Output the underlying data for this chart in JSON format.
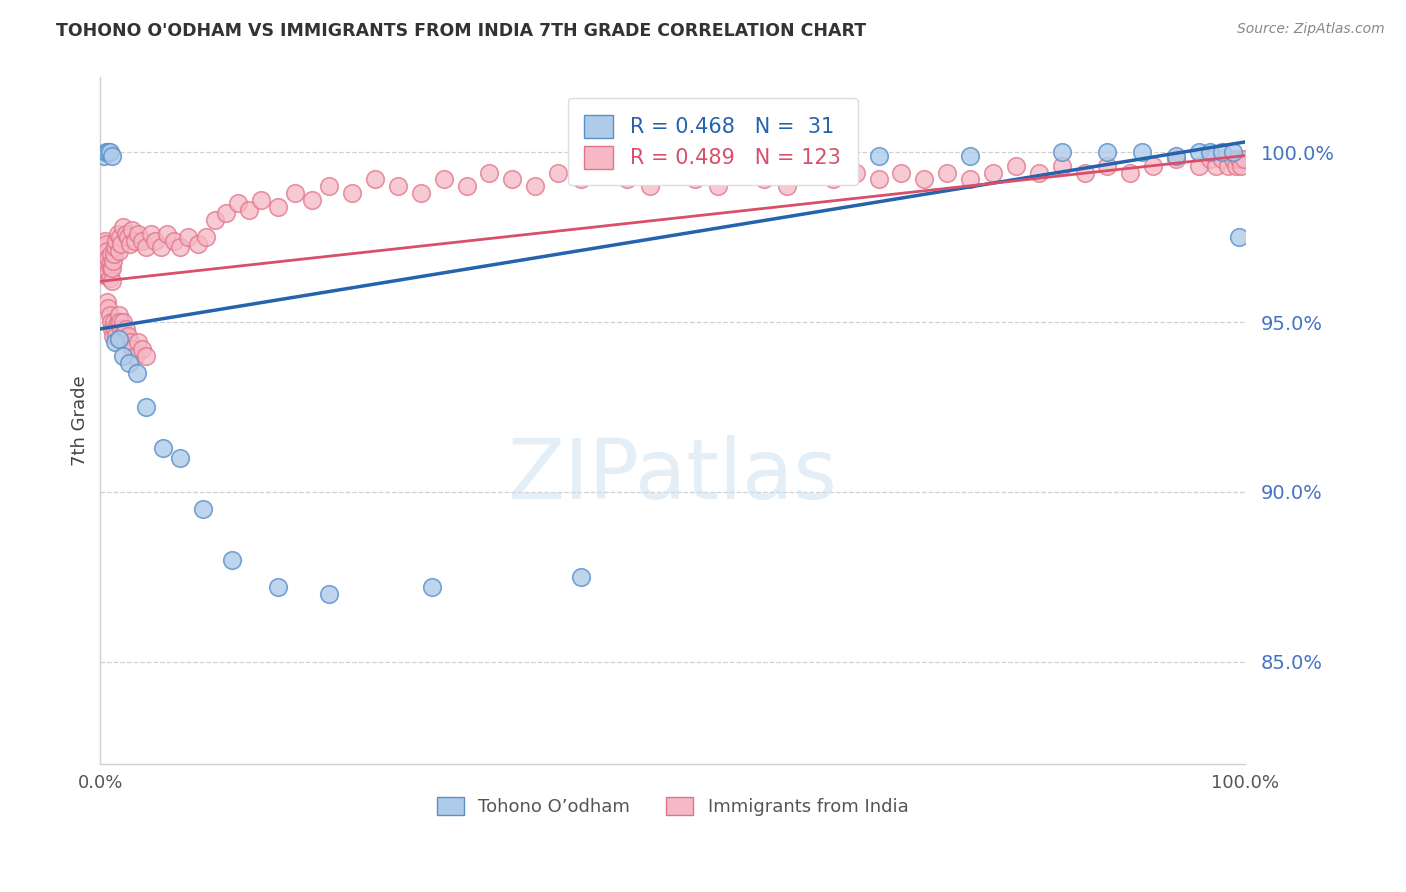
{
  "title": "TOHONO O'ODHAM VS IMMIGRANTS FROM INDIA 7TH GRADE CORRELATION CHART",
  "source": "Source: ZipAtlas.com",
  "ylabel": "7th Grade",
  "watermark": "ZIPatlas",
  "blue_legend": "Tohono O’odham",
  "pink_legend": "Immigrants from India",
  "blue_R": 0.468,
  "blue_N": 31,
  "pink_R": 0.489,
  "pink_N": 123,
  "ytick_values": [
    0.85,
    0.9,
    0.95,
    1.0
  ],
  "ytick_labels": [
    "85.0%",
    "90.0%",
    "95.0%",
    "100.0%"
  ],
  "xlim": [
    0.0,
    1.0
  ],
  "ylim": [
    0.82,
    1.022
  ],
  "blue_color": "#aecbea",
  "pink_color": "#f5b8c4",
  "blue_edge_color": "#5b8fc9",
  "pink_edge_color": "#e0758a",
  "blue_line_color": "#2563ae",
  "pink_line_color": "#d94f6b",
  "background_color": "#ffffff",
  "grid_color": "#d0d0d0",
  "title_color": "#333333",
  "source_color": "#888888",
  "ytick_color": "#4472c4",
  "blue_line_x0": 0.0,
  "blue_line_y0": 0.948,
  "blue_line_x1": 1.0,
  "blue_line_y1": 1.003,
  "pink_line_x0": 0.0,
  "pink_line_y0": 0.962,
  "pink_line_x1": 1.0,
  "pink_line_y1": 0.999,
  "blue_x": [
    0.003,
    0.005,
    0.007,
    0.008,
    0.01,
    0.013,
    0.016,
    0.02,
    0.025,
    0.032,
    0.04,
    0.055,
    0.07,
    0.09,
    0.115,
    0.155,
    0.2,
    0.29,
    0.42,
    0.58,
    0.68,
    0.76,
    0.84,
    0.88,
    0.91,
    0.94,
    0.96,
    0.97,
    0.98,
    0.99,
    0.995
  ],
  "blue_y": [
    0.999,
    1.0,
    1.0,
    1.0,
    0.999,
    0.944,
    0.945,
    0.94,
    0.938,
    0.935,
    0.925,
    0.913,
    0.91,
    0.895,
    0.88,
    0.872,
    0.87,
    0.872,
    0.875,
    0.998,
    0.999,
    0.999,
    1.0,
    1.0,
    1.0,
    0.999,
    1.0,
    1.0,
    1.0,
    1.0,
    0.975
  ],
  "pink_x": [
    0.001,
    0.001,
    0.002,
    0.002,
    0.003,
    0.003,
    0.003,
    0.004,
    0.004,
    0.004,
    0.005,
    0.005,
    0.005,
    0.006,
    0.006,
    0.007,
    0.007,
    0.008,
    0.008,
    0.009,
    0.009,
    0.01,
    0.01,
    0.011,
    0.012,
    0.013,
    0.014,
    0.015,
    0.016,
    0.017,
    0.018,
    0.02,
    0.022,
    0.024,
    0.026,
    0.028,
    0.03,
    0.033,
    0.036,
    0.04,
    0.044,
    0.048,
    0.053,
    0.058,
    0.064,
    0.07,
    0.077,
    0.085,
    0.092,
    0.1,
    0.11,
    0.12,
    0.13,
    0.14,
    0.155,
    0.17,
    0.185,
    0.2,
    0.22,
    0.24,
    0.26,
    0.28,
    0.3,
    0.32,
    0.34,
    0.36,
    0.38,
    0.4,
    0.42,
    0.44,
    0.46,
    0.48,
    0.5,
    0.52,
    0.54,
    0.56,
    0.58,
    0.6,
    0.62,
    0.64,
    0.66,
    0.68,
    0.7,
    0.72,
    0.74,
    0.76,
    0.78,
    0.8,
    0.82,
    0.84,
    0.86,
    0.88,
    0.9,
    0.92,
    0.94,
    0.96,
    0.97,
    0.975,
    0.98,
    0.985,
    0.99,
    0.992,
    0.995,
    0.997,
    0.999,
    0.006,
    0.007,
    0.008,
    0.009,
    0.01,
    0.011,
    0.012,
    0.013,
    0.014,
    0.015,
    0.016,
    0.017,
    0.018,
    0.019,
    0.02,
    0.022,
    0.024,
    0.026,
    0.028,
    0.03,
    0.033,
    0.036,
    0.04
  ],
  "pink_y": [
    0.966,
    0.97,
    0.968,
    0.972,
    0.964,
    0.968,
    0.972,
    0.966,
    0.97,
    0.974,
    0.965,
    0.969,
    0.973,
    0.967,
    0.971,
    0.965,
    0.969,
    0.963,
    0.967,
    0.966,
    0.97,
    0.962,
    0.966,
    0.968,
    0.97,
    0.972,
    0.974,
    0.976,
    0.971,
    0.975,
    0.973,
    0.978,
    0.976,
    0.975,
    0.973,
    0.977,
    0.974,
    0.976,
    0.974,
    0.972,
    0.976,
    0.974,
    0.972,
    0.976,
    0.974,
    0.972,
    0.975,
    0.973,
    0.975,
    0.98,
    0.982,
    0.985,
    0.983,
    0.986,
    0.984,
    0.988,
    0.986,
    0.99,
    0.988,
    0.992,
    0.99,
    0.988,
    0.992,
    0.99,
    0.994,
    0.992,
    0.99,
    0.994,
    0.992,
    0.994,
    0.992,
    0.99,
    0.994,
    0.992,
    0.99,
    0.994,
    0.992,
    0.99,
    0.994,
    0.992,
    0.994,
    0.992,
    0.994,
    0.992,
    0.994,
    0.992,
    0.994,
    0.996,
    0.994,
    0.996,
    0.994,
    0.996,
    0.994,
    0.996,
    0.998,
    0.996,
    0.998,
    0.996,
    0.998,
    0.996,
    0.998,
    0.996,
    0.998,
    0.996,
    0.998,
    0.956,
    0.954,
    0.952,
    0.95,
    0.948,
    0.946,
    0.95,
    0.948,
    0.946,
    0.95,
    0.952,
    0.95,
    0.948,
    0.946,
    0.95,
    0.948,
    0.946,
    0.944,
    0.942,
    0.94,
    0.944,
    0.942,
    0.94
  ]
}
